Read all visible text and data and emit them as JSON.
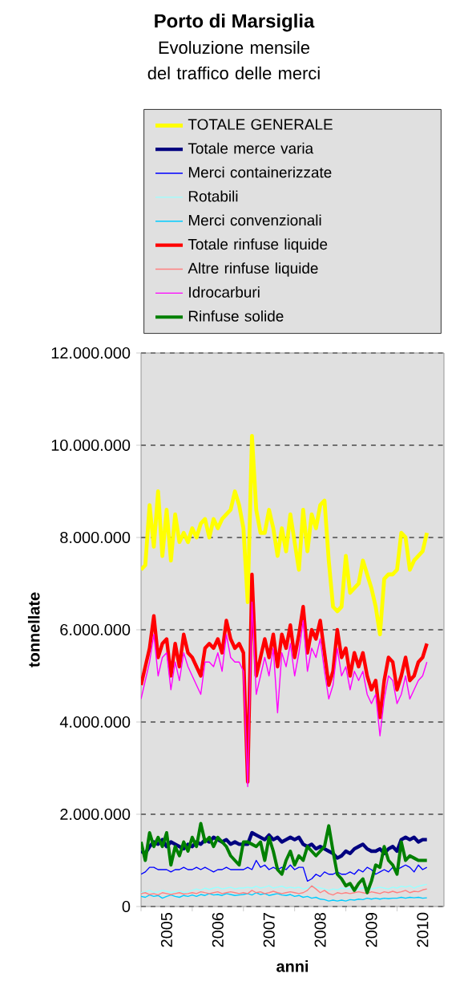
{
  "chart_data": {
    "type": "line",
    "title": "Porto di Marsiglia",
    "subtitle": "Evoluzione mensile del traffico delle merci",
    "xlabel": "anni",
    "ylabel": "tonnellate",
    "x": [
      "2005-01",
      "2005-02",
      "2005-03",
      "2005-04",
      "2005-05",
      "2005-06",
      "2005-07",
      "2005-08",
      "2005-09",
      "2005-10",
      "2005-11",
      "2005-12",
      "2006-01",
      "2006-02",
      "2006-03",
      "2006-04",
      "2006-05",
      "2006-06",
      "2006-07",
      "2006-08",
      "2006-09",
      "2006-10",
      "2006-11",
      "2006-12",
      "2007-01",
      "2007-02",
      "2007-03",
      "2007-04",
      "2007-05",
      "2007-06",
      "2007-07",
      "2007-08",
      "2007-09",
      "2007-10",
      "2007-11",
      "2007-12",
      "2008-01",
      "2008-02",
      "2008-03",
      "2008-04",
      "2008-05",
      "2008-06",
      "2008-07",
      "2008-08",
      "2008-09",
      "2008-10",
      "2008-11",
      "2008-12",
      "2009-01",
      "2009-02",
      "2009-03",
      "2009-04",
      "2009-05",
      "2009-06",
      "2009-07",
      "2009-08",
      "2009-09",
      "2009-10",
      "2009-11",
      "2009-12",
      "2010-01",
      "2010-02",
      "2010-03",
      "2010-04",
      "2010-05",
      "2010-06",
      "2010-07",
      "2010-08"
    ],
    "series": [
      {
        "name": "TOTALE GENERALE",
        "color": "#ffff00",
        "values": [
          7300000,
          7400000,
          8700000,
          7800000,
          9000000,
          7600000,
          8600000,
          7500000,
          8500000,
          7900000,
          8100000,
          7900000,
          8200000,
          8000000,
          8300000,
          8400000,
          8000000,
          8400000,
          8200000,
          8400000,
          8500000,
          8600000,
          9000000,
          8700000,
          8200000,
          6600000,
          10200000,
          8600000,
          8100000,
          8100000,
          8600000,
          8200000,
          7600000,
          8200000,
          7700000,
          8500000,
          7900000,
          7300000,
          8600000,
          7700000,
          8500000,
          8200000,
          8700000,
          8800000,
          7500000,
          6500000,
          6400000,
          6500000,
          7600000,
          6800000,
          6900000,
          7000000,
          7500000,
          7200000,
          6900000,
          6500000,
          5900000,
          7100000,
          7200000,
          7200000,
          7300000,
          8100000,
          8000000,
          7300000,
          7500000,
          7600000,
          7700000,
          8100000
        ]
      },
      {
        "name": "Totale merce varia",
        "color": "#000080",
        "values": [
          1200000,
          1150000,
          1300000,
          1400000,
          1350000,
          1450000,
          1300000,
          1400000,
          1350000,
          1300000,
          1250000,
          1350000,
          1300000,
          1400000,
          1350000,
          1450000,
          1400000,
          1500000,
          1450000,
          1400000,
          1450000,
          1350000,
          1400000,
          1350000,
          1350000,
          1350000,
          1600000,
          1550000,
          1500000,
          1450000,
          1550000,
          1450000,
          1500000,
          1400000,
          1450000,
          1500000,
          1450000,
          1500000,
          1350000,
          1300000,
          1350000,
          1250000,
          1300000,
          1250000,
          1200000,
          1150000,
          1050000,
          1100000,
          1200000,
          1150000,
          1250000,
          1300000,
          1350000,
          1250000,
          1200000,
          1200000,
          1250000,
          1150000,
          1250000,
          1300000,
          1200000,
          1450000,
          1500000,
          1450000,
          1500000,
          1400000,
          1450000,
          1450000
        ]
      },
      {
        "name": "Merci containerizzate",
        "color": "#0000ff",
        "values": [
          700000,
          750000,
          850000,
          850000,
          800000,
          800000,
          800000,
          750000,
          800000,
          800000,
          850000,
          800000,
          800000,
          850000,
          800000,
          850000,
          800000,
          750000,
          800000,
          800000,
          850000,
          800000,
          800000,
          800000,
          800000,
          850000,
          800000,
          1000000,
          850000,
          900000,
          800000,
          850000,
          800000,
          850000,
          800000,
          900000,
          800000,
          850000,
          850000,
          550000,
          600000,
          700000,
          650000,
          750000,
          700000,
          700000,
          750000,
          700000,
          700000,
          750000,
          700000,
          800000,
          750000,
          850000,
          800000,
          700000,
          750000,
          800000,
          750000,
          850000,
          800000,
          850000,
          900000,
          850000,
          750000,
          900000,
          800000,
          850000
        ]
      },
      {
        "name": "Rotabili",
        "color": "#99ffff",
        "values": [
          300000,
          320000,
          350000,
          300000,
          320000,
          350000,
          330000,
          300000,
          320000,
          340000,
          300000,
          320000,
          350000,
          380000,
          350000,
          400000,
          370000,
          400000,
          420000,
          380000,
          400000,
          420000,
          380000,
          400000,
          400000,
          420000,
          400000,
          440000,
          400000,
          420000,
          450000,
          400000,
          420000,
          440000,
          400000,
          420000,
          400000,
          420000,
          380000,
          400000,
          450000,
          420000,
          400000,
          380000,
          350000,
          380000,
          360000,
          400000,
          380000,
          400000,
          360000,
          380000,
          400000,
          420000,
          380000,
          400000,
          420000,
          400000,
          380000,
          420000,
          400000,
          440000,
          420000,
          450000,
          400000,
          440000,
          460000,
          480000
        ]
      },
      {
        "name": "Merci convenzionali",
        "color": "#00ccff",
        "values": [
          220000,
          200000,
          250000,
          220000,
          240000,
          180000,
          220000,
          250000,
          220000,
          200000,
          240000,
          220000,
          250000,
          220000,
          260000,
          240000,
          280000,
          250000,
          260000,
          240000,
          280000,
          260000,
          240000,
          250000,
          260000,
          280000,
          250000,
          300000,
          260000,
          280000,
          240000,
          260000,
          280000,
          250000,
          240000,
          260000,
          220000,
          240000,
          200000,
          220000,
          180000,
          200000,
          160000,
          150000,
          120000,
          140000,
          120000,
          140000,
          120000,
          150000,
          140000,
          160000,
          150000,
          180000,
          160000,
          180000,
          160000,
          180000,
          170000,
          180000,
          180000,
          200000,
          180000,
          200000,
          190000,
          200000,
          180000,
          190000
        ]
      },
      {
        "name": "Totale rinfuse liquide",
        "color": "#ff0000",
        "values": [
          4800000,
          5200000,
          5600000,
          6300000,
          5400000,
          5700000,
          5800000,
          5000000,
          5700000,
          5200000,
          5900000,
          5500000,
          5400000,
          5200000,
          5000000,
          5600000,
          5700000,
          5600000,
          5800000,
          5500000,
          6200000,
          5800000,
          5600000,
          5700000,
          5500000,
          2700000,
          7200000,
          5000000,
          5400000,
          5800000,
          5400000,
          5900000,
          5200000,
          5900000,
          5600000,
          6100000,
          5400000,
          5900000,
          6500000,
          5500000,
          6000000,
          5800000,
          6200000,
          5500000,
          4800000,
          5100000,
          6000000,
          5400000,
          5600000,
          5000000,
          5500000,
          5200000,
          5500000,
          5000000,
          4700000,
          4900000,
          4100000,
          4900000,
          5400000,
          5300000,
          4700000,
          5000000,
          5400000,
          4900000,
          5000000,
          5300000,
          5400000,
          5700000
        ]
      },
      {
        "name": "Altre rinfuse liquide",
        "color": "#ff8080",
        "values": [
          280000,
          300000,
          260000,
          280000,
          250000,
          300000,
          280000,
          260000,
          280000,
          300000,
          270000,
          280000,
          300000,
          280000,
          320000,
          300000,
          280000,
          300000,
          320000,
          280000,
          300000,
          320000,
          300000,
          280000,
          300000,
          280000,
          350000,
          300000,
          320000,
          280000,
          300000,
          330000,
          300000,
          280000,
          300000,
          320000,
          300000,
          280000,
          300000,
          350000,
          450000,
          380000,
          300000,
          350000,
          280000,
          250000,
          300000,
          280000,
          300000,
          280000,
          300000,
          320000,
          300000,
          280000,
          320000,
          300000,
          280000,
          320000,
          300000,
          330000,
          300000,
          320000,
          350000,
          300000,
          330000,
          320000,
          360000,
          380000
        ]
      },
      {
        "name": "Idrocarburi",
        "color": "#ff00ff",
        "values": [
          4500000,
          4900000,
          5300000,
          5900000,
          5000000,
          5400000,
          5500000,
          4700000,
          5300000,
          4900000,
          5500000,
          5200000,
          5000000,
          4800000,
          4600000,
          5300000,
          5300000,
          5200000,
          5500000,
          5100000,
          5900000,
          5400000,
          5300000,
          5300000,
          5100000,
          2600000,
          6600000,
          4600000,
          5000000,
          5400000,
          5000000,
          5600000,
          4200000,
          5500000,
          5200000,
          5700000,
          5000000,
          5500000,
          6200000,
          5100000,
          5600000,
          5400000,
          5800000,
          5100000,
          4500000,
          4800000,
          5600000,
          5000000,
          5200000,
          4700000,
          5100000,
          4900000,
          5100000,
          4600000,
          4400000,
          4600000,
          3700000,
          4500000,
          5000000,
          4900000,
          4400000,
          4600000,
          5000000,
          4500000,
          4700000,
          4900000,
          5000000,
          5300000
        ]
      },
      {
        "name": "Rinfuse solide",
        "color": "#008000",
        "values": [
          1400000,
          1000000,
          1600000,
          1300000,
          1500000,
          1300000,
          1600000,
          900000,
          1300000,
          1100000,
          1400000,
          1200000,
          1500000,
          1300000,
          1800000,
          1400000,
          1500000,
          1300000,
          1500000,
          1400000,
          1300000,
          1100000,
          1000000,
          900000,
          1400000,
          1400000,
          1350000,
          1300000,
          1400000,
          1000000,
          1500000,
          1200000,
          800000,
          700000,
          1000000,
          1200000,
          900000,
          1100000,
          1000000,
          1300000,
          1200000,
          1100000,
          1200000,
          1300000,
          1750000,
          1200000,
          700000,
          600000,
          450000,
          500000,
          350000,
          500000,
          600000,
          300000,
          550000,
          900000,
          850000,
          1300000,
          1000000,
          900000,
          700000,
          1400000,
          1000000,
          1100000,
          1050000,
          1000000,
          1000000,
          1000000
        ]
      }
    ],
    "xlim": [
      "2005-01",
      "2010-12"
    ],
    "xticks": [
      {
        "value": "2005-01",
        "label": null
      },
      {
        "value": "2005-07",
        "label": "2005"
      },
      {
        "value": "2006-01",
        "label": null
      },
      {
        "value": "2006-07",
        "label": "2006"
      },
      {
        "value": "2007-01",
        "label": null
      },
      {
        "value": "2007-07",
        "label": "2007"
      },
      {
        "value": "2008-01",
        "label": null
      },
      {
        "value": "2008-07",
        "label": "2008"
      },
      {
        "value": "2009-01",
        "label": null
      },
      {
        "value": "2009-07",
        "label": "2009"
      },
      {
        "value": "2010-01",
        "label": null
      },
      {
        "value": "2010-07",
        "label": "2010"
      }
    ],
    "ylim": [
      0,
      12000000
    ],
    "yticks": [
      0,
      {
        "value": 2000000,
        "label": "2.000.000"
      },
      {
        "value": 4000000,
        "label": "4.000.000"
      },
      {
        "value": 6000000,
        "label": "6.000.000"
      },
      {
        "value": 8000000,
        "label": "8.000.000"
      },
      {
        "value": 10000000,
        "label": "10.000.000"
      },
      {
        "value": 12000000,
        "label": "12.000.000"
      }
    ],
    "grid": "y",
    "legend": "top",
    "marker": "none",
    "line_style": "solid"
  }
}
